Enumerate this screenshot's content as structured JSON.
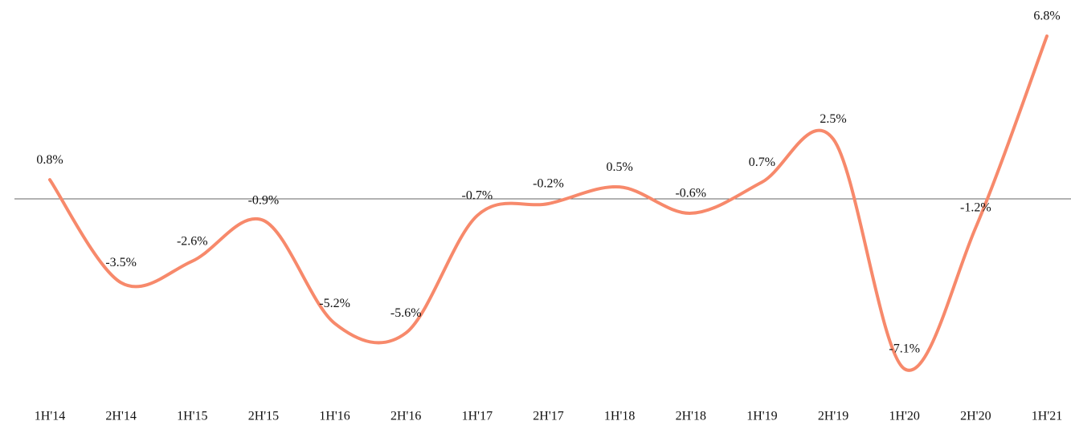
{
  "chart_data": {
    "type": "line",
    "categories": [
      "1H'14",
      "2H'14",
      "1H'15",
      "2H'15",
      "1H'16",
      "2H'16",
      "1H'17",
      "2H'17",
      "1H'18",
      "2H'18",
      "1H'19",
      "2H'19",
      "1H'20",
      "2H'20",
      "1H'21"
    ],
    "series": [
      {
        "name": null,
        "color": "#f7896b",
        "values": [
          0.8,
          -3.5,
          -2.6,
          -0.9,
          -5.2,
          -5.6,
          -0.7,
          -0.2,
          0.5,
          -0.6,
          0.7,
          2.5,
          -7.1,
          -1.2,
          6.8
        ],
        "value_labels": [
          "0.8%",
          "-3.5%",
          "-2.6%",
          "-0.9%",
          "-5.2%",
          "-5.6%",
          "-0.7%",
          "-0.2%",
          "0.5%",
          "-0.6%",
          "0.7%",
          "2.5%",
          "-7.1%",
          "-1.2%",
          "6.8%"
        ]
      }
    ]
  }
}
